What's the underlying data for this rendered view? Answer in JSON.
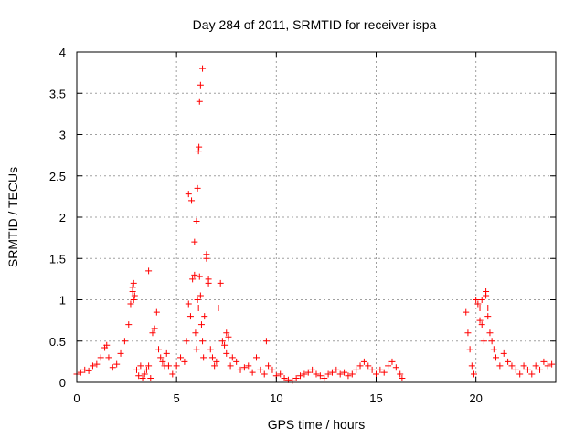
{
  "chart_data": {
    "type": "scatter",
    "title": "Day 284 of 2011, SRMTID for receiver ispa",
    "xlabel": "GPS time / hours",
    "ylabel": "SRMTID / TECUs",
    "xlim": [
      0,
      24
    ],
    "ylim": [
      0,
      4
    ],
    "xticks": [
      0,
      5,
      10,
      15,
      20
    ],
    "yticks": [
      0,
      0.5,
      1,
      1.5,
      2,
      2.5,
      3,
      3.5,
      4
    ],
    "xtick_labels": [
      "0",
      "5",
      "10",
      "15",
      "20"
    ],
    "ytick_labels": [
      "0",
      "0.5",
      "1",
      "1.5",
      "2",
      "2.5",
      "3",
      "3.5",
      "4"
    ],
    "grid": true,
    "marker": "+",
    "color": "#ff0000",
    "series": [
      {
        "name": "SRMTID",
        "x": [
          0.0,
          0.2,
          0.4,
          0.6,
          0.8,
          1.0,
          1.2,
          1.4,
          1.5,
          1.6,
          1.8,
          2.0,
          2.2,
          2.4,
          2.6,
          2.7,
          2.8,
          2.85,
          2.9,
          3.0,
          3.1,
          3.2,
          3.3,
          3.4,
          3.5,
          3.6,
          3.7,
          3.8,
          3.9,
          4.0,
          4.1,
          4.2,
          4.3,
          4.4,
          4.5,
          4.6,
          4.8,
          5.0,
          5.2,
          5.4,
          5.5,
          5.6,
          5.7,
          5.8,
          5.9,
          5.95,
          6.0,
          6.05,
          6.1,
          6.15,
          6.2,
          6.25,
          6.3,
          6.35,
          6.4,
          6.5,
          6.6,
          6.7,
          6.8,
          6.9,
          7.0,
          7.1,
          7.2,
          7.3,
          7.4,
          7.5,
          7.6,
          7.7,
          7.8,
          8.0,
          8.2,
          8.4,
          8.6,
          8.8,
          9.0,
          9.2,
          9.4,
          9.5,
          9.6,
          9.8,
          10.0,
          10.2,
          10.4,
          10.6,
          10.8,
          11.0,
          11.2,
          11.4,
          11.6,
          11.8,
          12.0,
          12.2,
          12.4,
          12.6,
          12.8,
          13.0,
          13.2,
          13.4,
          13.6,
          13.8,
          14.0,
          14.2,
          14.4,
          14.6,
          14.8,
          15.0,
          15.2,
          15.4,
          15.6,
          15.8,
          16.0,
          16.2,
          16.3,
          19.5,
          19.6,
          19.7,
          19.8,
          19.9,
          20.0,
          20.1,
          20.2,
          20.3,
          20.4,
          20.5,
          20.6,
          20.7,
          20.8,
          20.9,
          21.0,
          21.2,
          21.4,
          21.6,
          21.8,
          22.0,
          22.2,
          22.4,
          22.6,
          22.8,
          23.0,
          23.2,
          23.4,
          23.6,
          23.8,
          5.6,
          5.75,
          5.9,
          6.0,
          6.05,
          6.1,
          6.12,
          6.15,
          6.2,
          6.3,
          6.5,
          6.6,
          7.5,
          3.6,
          2.8,
          2.85,
          20.3,
          20.5,
          20.2,
          20.6
        ],
        "y": [
          0.1,
          0.12,
          0.15,
          0.14,
          0.2,
          0.22,
          0.3,
          0.42,
          0.45,
          0.3,
          0.18,
          0.22,
          0.35,
          0.5,
          0.7,
          0.95,
          1.15,
          1.2,
          1.05,
          0.15,
          0.08,
          0.2,
          0.05,
          0.1,
          0.15,
          0.2,
          0.05,
          0.6,
          0.65,
          0.85,
          0.4,
          0.3,
          0.25,
          0.2,
          0.35,
          0.2,
          0.1,
          0.2,
          0.3,
          0.25,
          0.5,
          0.95,
          0.8,
          1.25,
          1.3,
          0.6,
          0.4,
          1.0,
          0.9,
          1.28,
          1.05,
          0.7,
          0.5,
          0.3,
          0.8,
          1.5,
          1.2,
          0.4,
          0.3,
          0.2,
          0.25,
          0.9,
          1.2,
          0.5,
          0.45,
          0.35,
          0.55,
          0.2,
          0.3,
          0.25,
          0.15,
          0.18,
          0.2,
          0.12,
          0.3,
          0.15,
          0.1,
          0.5,
          0.2,
          0.15,
          0.08,
          0.1,
          0.05,
          0.03,
          0.02,
          0.05,
          0.08,
          0.1,
          0.12,
          0.15,
          0.1,
          0.08,
          0.05,
          0.1,
          0.12,
          0.15,
          0.1,
          0.12,
          0.08,
          0.1,
          0.15,
          0.2,
          0.25,
          0.2,
          0.15,
          0.1,
          0.15,
          0.12,
          0.2,
          0.25,
          0.18,
          0.1,
          0.05,
          0.85,
          0.6,
          0.4,
          0.2,
          0.1,
          1.0,
          0.95,
          0.9,
          0.7,
          0.5,
          1.1,
          0.8,
          0.6,
          0.5,
          0.4,
          0.3,
          0.2,
          0.35,
          0.25,
          0.2,
          0.15,
          0.1,
          0.2,
          0.15,
          0.1,
          0.2,
          0.15,
          0.25,
          0.2,
          0.22,
          2.28,
          2.2,
          1.7,
          1.95,
          2.35,
          2.8,
          2.85,
          3.4,
          3.6,
          3.8,
          1.55,
          1.25,
          0.6,
          1.35,
          1.1,
          1.0,
          1.0,
          1.05,
          0.75,
          0.9
        ]
      }
    ]
  }
}
